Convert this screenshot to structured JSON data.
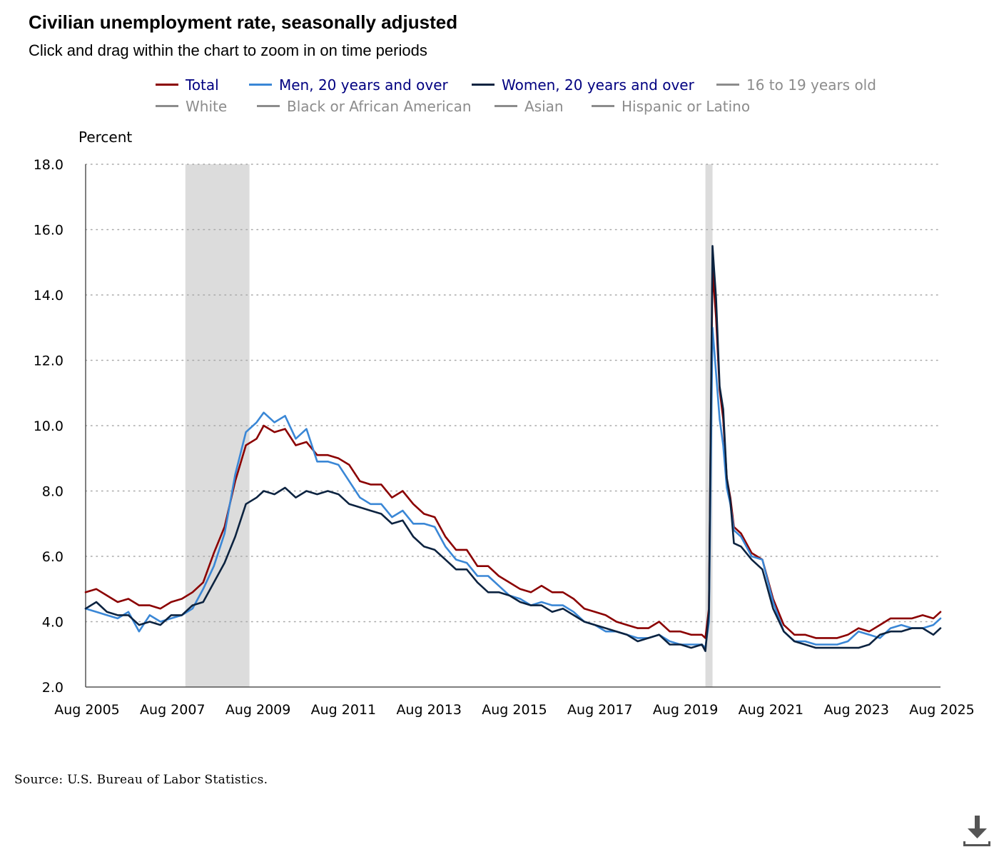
{
  "header": {
    "title": "Civilian unemployment rate, seasonally adjusted",
    "subtitle": "Click and drag within the chart to zoom in on time periods"
  },
  "legend": {
    "rows": [
      [
        {
          "label": "Total",
          "color": "#8b0000",
          "label_color": "#000080",
          "active": true
        },
        {
          "label": "Men, 20 years and over",
          "color": "#3a87d6",
          "label_color": "#000080",
          "active": true
        },
        {
          "label": "Women, 20 years and over",
          "color": "#0c2340",
          "label_color": "#000080",
          "active": true
        },
        {
          "label": "16 to 19 years old",
          "color": "#8c8c8c",
          "label_color": "#8c8c8c",
          "active": false
        }
      ],
      [
        {
          "label": "White",
          "color": "#8c8c8c",
          "label_color": "#8c8c8c",
          "active": false
        },
        {
          "label": "Black or African American",
          "color": "#8c8c8c",
          "label_color": "#8c8c8c",
          "active": false
        },
        {
          "label": "Asian",
          "color": "#8c8c8c",
          "label_color": "#8c8c8c",
          "active": false
        },
        {
          "label": "Hispanic or Latino",
          "color": "#8c8c8c",
          "label_color": "#8c8c8c",
          "active": false
        }
      ]
    ]
  },
  "chart_data": {
    "type": "line",
    "ylabel": "Percent",
    "xlabel": "",
    "ylim": [
      2.0,
      18.0
    ],
    "yticks": [
      "2.0",
      "4.0",
      "6.0",
      "8.0",
      "10.0",
      "12.0",
      "14.0",
      "16.0",
      "18.0"
    ],
    "xlim": [
      "2005-08",
      "2025-08"
    ],
    "xticks": [
      "Aug 2005",
      "Aug 2007",
      "Aug 2009",
      "Aug 2011",
      "Aug 2013",
      "Aug 2015",
      "Aug 2017",
      "Aug 2019",
      "Aug 2021",
      "Aug 2023",
      "Aug 2025"
    ],
    "grid": "horizontal dotted",
    "recessions": [
      {
        "start": "2007-12",
        "end": "2009-06",
        "color": "#dcdcdc"
      },
      {
        "start": "2020-02",
        "end": "2020-04",
        "color": "#dcdcdc"
      }
    ],
    "series": [
      {
        "name": "Total",
        "color": "#8b0000",
        "points": [
          [
            "2005-08",
            4.9
          ],
          [
            "2005-11",
            5.0
          ],
          [
            "2006-02",
            4.8
          ],
          [
            "2006-05",
            4.6
          ],
          [
            "2006-08",
            4.7
          ],
          [
            "2006-11",
            4.5
          ],
          [
            "2007-02",
            4.5
          ],
          [
            "2007-05",
            4.4
          ],
          [
            "2007-08",
            4.6
          ],
          [
            "2007-11",
            4.7
          ],
          [
            "2008-02",
            4.9
          ],
          [
            "2008-05",
            5.2
          ],
          [
            "2008-08",
            6.1
          ],
          [
            "2008-11",
            6.9
          ],
          [
            "2009-02",
            8.3
          ],
          [
            "2009-05",
            9.4
          ],
          [
            "2009-08",
            9.6
          ],
          [
            "2009-10",
            10.0
          ],
          [
            "2010-01",
            9.8
          ],
          [
            "2010-04",
            9.9
          ],
          [
            "2010-07",
            9.4
          ],
          [
            "2010-10",
            9.5
          ],
          [
            "2011-01",
            9.1
          ],
          [
            "2011-04",
            9.1
          ],
          [
            "2011-07",
            9.0
          ],
          [
            "2011-10",
            8.8
          ],
          [
            "2012-01",
            8.3
          ],
          [
            "2012-04",
            8.2
          ],
          [
            "2012-07",
            8.2
          ],
          [
            "2012-10",
            7.8
          ],
          [
            "2013-01",
            8.0
          ],
          [
            "2013-04",
            7.6
          ],
          [
            "2013-07",
            7.3
          ],
          [
            "2013-10",
            7.2
          ],
          [
            "2014-01",
            6.6
          ],
          [
            "2014-04",
            6.2
          ],
          [
            "2014-07",
            6.2
          ],
          [
            "2014-10",
            5.7
          ],
          [
            "2015-01",
            5.7
          ],
          [
            "2015-04",
            5.4
          ],
          [
            "2015-07",
            5.2
          ],
          [
            "2015-10",
            5.0
          ],
          [
            "2016-01",
            4.9
          ],
          [
            "2016-04",
            5.1
          ],
          [
            "2016-07",
            4.9
          ],
          [
            "2016-10",
            4.9
          ],
          [
            "2017-01",
            4.7
          ],
          [
            "2017-04",
            4.4
          ],
          [
            "2017-07",
            4.3
          ],
          [
            "2017-10",
            4.2
          ],
          [
            "2018-01",
            4.0
          ],
          [
            "2018-04",
            3.9
          ],
          [
            "2018-07",
            3.8
          ],
          [
            "2018-10",
            3.8
          ],
          [
            "2019-01",
            4.0
          ],
          [
            "2019-04",
            3.7
          ],
          [
            "2019-07",
            3.7
          ],
          [
            "2019-10",
            3.6
          ],
          [
            "2020-01",
            3.6
          ],
          [
            "2020-02",
            3.5
          ],
          [
            "2020-03",
            4.4
          ],
          [
            "2020-04",
            14.8
          ],
          [
            "2020-05",
            13.3
          ],
          [
            "2020-06",
            11.1
          ],
          [
            "2020-07",
            10.2
          ],
          [
            "2020-08",
            8.4
          ],
          [
            "2020-09",
            7.8
          ],
          [
            "2020-10",
            6.9
          ],
          [
            "2020-12",
            6.7
          ],
          [
            "2021-03",
            6.1
          ],
          [
            "2021-06",
            5.9
          ],
          [
            "2021-09",
            4.7
          ],
          [
            "2021-12",
            3.9
          ],
          [
            "2022-03",
            3.6
          ],
          [
            "2022-06",
            3.6
          ],
          [
            "2022-09",
            3.5
          ],
          [
            "2022-12",
            3.5
          ],
          [
            "2023-03",
            3.5
          ],
          [
            "2023-06",
            3.6
          ],
          [
            "2023-09",
            3.8
          ],
          [
            "2023-12",
            3.7
          ],
          [
            "2024-03",
            3.9
          ],
          [
            "2024-06",
            4.1
          ],
          [
            "2024-09",
            4.1
          ],
          [
            "2024-12",
            4.1
          ],
          [
            "2025-03",
            4.2
          ],
          [
            "2025-06",
            4.1
          ],
          [
            "2025-08",
            4.3
          ]
        ]
      },
      {
        "name": "Men, 20 years and over",
        "color": "#3a87d6",
        "points": [
          [
            "2005-08",
            4.4
          ],
          [
            "2005-11",
            4.3
          ],
          [
            "2006-02",
            4.2
          ],
          [
            "2006-05",
            4.1
          ],
          [
            "2006-08",
            4.3
          ],
          [
            "2006-11",
            3.7
          ],
          [
            "2007-02",
            4.2
          ],
          [
            "2007-05",
            4.0
          ],
          [
            "2007-08",
            4.1
          ],
          [
            "2007-11",
            4.2
          ],
          [
            "2008-02",
            4.4
          ],
          [
            "2008-05",
            5.0
          ],
          [
            "2008-08",
            5.7
          ],
          [
            "2008-11",
            6.7
          ],
          [
            "2009-02",
            8.5
          ],
          [
            "2009-05",
            9.8
          ],
          [
            "2009-08",
            10.1
          ],
          [
            "2009-10",
            10.4
          ],
          [
            "2010-01",
            10.1
          ],
          [
            "2010-04",
            10.3
          ],
          [
            "2010-07",
            9.6
          ],
          [
            "2010-10",
            9.9
          ],
          [
            "2011-01",
            8.9
          ],
          [
            "2011-04",
            8.9
          ],
          [
            "2011-07",
            8.8
          ],
          [
            "2011-10",
            8.3
          ],
          [
            "2012-01",
            7.8
          ],
          [
            "2012-04",
            7.6
          ],
          [
            "2012-07",
            7.6
          ],
          [
            "2012-10",
            7.2
          ],
          [
            "2013-01",
            7.4
          ],
          [
            "2013-04",
            7.0
          ],
          [
            "2013-07",
            7.0
          ],
          [
            "2013-10",
            6.9
          ],
          [
            "2014-01",
            6.3
          ],
          [
            "2014-04",
            5.9
          ],
          [
            "2014-07",
            5.8
          ],
          [
            "2014-10",
            5.4
          ],
          [
            "2015-01",
            5.4
          ],
          [
            "2015-04",
            5.1
          ],
          [
            "2015-07",
            4.8
          ],
          [
            "2015-10",
            4.7
          ],
          [
            "2016-01",
            4.5
          ],
          [
            "2016-04",
            4.6
          ],
          [
            "2016-07",
            4.5
          ],
          [
            "2016-10",
            4.5
          ],
          [
            "2017-01",
            4.3
          ],
          [
            "2017-04",
            4.0
          ],
          [
            "2017-07",
            3.9
          ],
          [
            "2017-10",
            3.7
          ],
          [
            "2018-01",
            3.7
          ],
          [
            "2018-04",
            3.6
          ],
          [
            "2018-07",
            3.5
          ],
          [
            "2018-10",
            3.5
          ],
          [
            "2019-01",
            3.6
          ],
          [
            "2019-04",
            3.4
          ],
          [
            "2019-07",
            3.3
          ],
          [
            "2019-10",
            3.3
          ],
          [
            "2020-01",
            3.3
          ],
          [
            "2020-02",
            3.2
          ],
          [
            "2020-03",
            4.0
          ],
          [
            "2020-04",
            13.0
          ],
          [
            "2020-05",
            11.6
          ],
          [
            "2020-06",
            10.2
          ],
          [
            "2020-07",
            9.4
          ],
          [
            "2020-08",
            8.1
          ],
          [
            "2020-09",
            7.6
          ],
          [
            "2020-10",
            6.8
          ],
          [
            "2020-12",
            6.6
          ],
          [
            "2021-03",
            6.0
          ],
          [
            "2021-06",
            5.9
          ],
          [
            "2021-09",
            4.6
          ],
          [
            "2021-12",
            3.7
          ],
          [
            "2022-03",
            3.4
          ],
          [
            "2022-06",
            3.4
          ],
          [
            "2022-09",
            3.3
          ],
          [
            "2022-12",
            3.3
          ],
          [
            "2023-03",
            3.3
          ],
          [
            "2023-06",
            3.4
          ],
          [
            "2023-09",
            3.7
          ],
          [
            "2023-12",
            3.6
          ],
          [
            "2024-03",
            3.5
          ],
          [
            "2024-06",
            3.8
          ],
          [
            "2024-09",
            3.9
          ],
          [
            "2024-12",
            3.8
          ],
          [
            "2025-03",
            3.8
          ],
          [
            "2025-06",
            3.9
          ],
          [
            "2025-08",
            4.1
          ]
        ]
      },
      {
        "name": "Women, 20 years and over",
        "color": "#0c2340",
        "points": [
          [
            "2005-08",
            4.4
          ],
          [
            "2005-11",
            4.6
          ],
          [
            "2006-02",
            4.3
          ],
          [
            "2006-05",
            4.2
          ],
          [
            "2006-08",
            4.2
          ],
          [
            "2006-11",
            3.9
          ],
          [
            "2007-02",
            4.0
          ],
          [
            "2007-05",
            3.9
          ],
          [
            "2007-08",
            4.2
          ],
          [
            "2007-11",
            4.2
          ],
          [
            "2008-02",
            4.5
          ],
          [
            "2008-05",
            4.6
          ],
          [
            "2008-08",
            5.2
          ],
          [
            "2008-11",
            5.8
          ],
          [
            "2009-02",
            6.6
          ],
          [
            "2009-05",
            7.6
          ],
          [
            "2009-08",
            7.8
          ],
          [
            "2009-10",
            8.0
          ],
          [
            "2010-01",
            7.9
          ],
          [
            "2010-04",
            8.1
          ],
          [
            "2010-07",
            7.8
          ],
          [
            "2010-10",
            8.0
          ],
          [
            "2011-01",
            7.9
          ],
          [
            "2011-04",
            8.0
          ],
          [
            "2011-07",
            7.9
          ],
          [
            "2011-10",
            7.6
          ],
          [
            "2012-01",
            7.5
          ],
          [
            "2012-04",
            7.4
          ],
          [
            "2012-07",
            7.3
          ],
          [
            "2012-10",
            7.0
          ],
          [
            "2013-01",
            7.1
          ],
          [
            "2013-04",
            6.6
          ],
          [
            "2013-07",
            6.3
          ],
          [
            "2013-10",
            6.2
          ],
          [
            "2014-01",
            5.9
          ],
          [
            "2014-04",
            5.6
          ],
          [
            "2014-07",
            5.6
          ],
          [
            "2014-10",
            5.2
          ],
          [
            "2015-01",
            4.9
          ],
          [
            "2015-04",
            4.9
          ],
          [
            "2015-07",
            4.8
          ],
          [
            "2015-10",
            4.6
          ],
          [
            "2016-01",
            4.5
          ],
          [
            "2016-04",
            4.5
          ],
          [
            "2016-07",
            4.3
          ],
          [
            "2016-10",
            4.4
          ],
          [
            "2017-01",
            4.2
          ],
          [
            "2017-04",
            4.0
          ],
          [
            "2017-07",
            3.9
          ],
          [
            "2017-10",
            3.8
          ],
          [
            "2018-01",
            3.7
          ],
          [
            "2018-04",
            3.6
          ],
          [
            "2018-07",
            3.4
          ],
          [
            "2018-10",
            3.5
          ],
          [
            "2019-01",
            3.6
          ],
          [
            "2019-04",
            3.3
          ],
          [
            "2019-07",
            3.3
          ],
          [
            "2019-10",
            3.2
          ],
          [
            "2020-01",
            3.3
          ],
          [
            "2020-02",
            3.1
          ],
          [
            "2020-03",
            4.3
          ],
          [
            "2020-04",
            15.5
          ],
          [
            "2020-05",
            13.9
          ],
          [
            "2020-06",
            11.2
          ],
          [
            "2020-07",
            10.5
          ],
          [
            "2020-08",
            8.4
          ],
          [
            "2020-09",
            7.7
          ],
          [
            "2020-10",
            6.4
          ],
          [
            "2020-12",
            6.3
          ],
          [
            "2021-03",
            5.9
          ],
          [
            "2021-06",
            5.6
          ],
          [
            "2021-09",
            4.4
          ],
          [
            "2021-12",
            3.7
          ],
          [
            "2022-03",
            3.4
          ],
          [
            "2022-06",
            3.3
          ],
          [
            "2022-09",
            3.2
          ],
          [
            "2022-12",
            3.2
          ],
          [
            "2023-03",
            3.2
          ],
          [
            "2023-06",
            3.2
          ],
          [
            "2023-09",
            3.2
          ],
          [
            "2023-12",
            3.3
          ],
          [
            "2024-03",
            3.6
          ],
          [
            "2024-06",
            3.7
          ],
          [
            "2024-09",
            3.7
          ],
          [
            "2024-12",
            3.8
          ],
          [
            "2025-03",
            3.8
          ],
          [
            "2025-06",
            3.6
          ],
          [
            "2025-08",
            3.8
          ]
        ]
      }
    ]
  },
  "footer": {
    "source": "Source: U.S. Bureau of Labor Statistics."
  }
}
